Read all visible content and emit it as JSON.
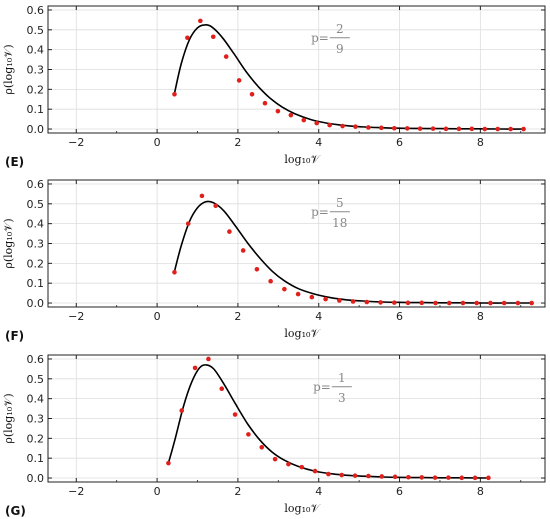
{
  "chart_data": [
    {
      "type": "scatter",
      "panel_label": "(E)",
      "xlabel": "log₁₀𝒱",
      "ylabel": "ρ(log₁₀𝒱)",
      "xlim": [
        -2.7,
        9.6
      ],
      "ylim": [
        -0.02,
        0.62
      ],
      "xticks": [
        -2,
        0,
        2,
        4,
        6,
        8
      ],
      "yticks": [
        0.0,
        0.1,
        0.2,
        0.3,
        0.4,
        0.5,
        0.6
      ],
      "ytick_labels": [
        "0.0",
        "0.1",
        "0.2",
        "0.3",
        "0.4",
        "0.5",
        "0.6"
      ],
      "grid": true,
      "annotation": {
        "prefix": "p=",
        "numerator": "2",
        "denominator": "9"
      },
      "series": [
        {
          "kind": "points",
          "color": "#e0201c",
          "x": [
            0.43,
            0.75,
            1.07,
            1.39,
            1.71,
            2.03,
            2.35,
            2.67,
            2.99,
            3.31,
            3.63,
            3.95,
            4.27,
            4.59,
            4.91,
            5.23,
            5.55,
            5.87,
            6.19,
            6.51,
            6.83,
            7.15,
            7.47,
            7.79,
            8.11,
            8.43,
            8.75,
            9.07
          ],
          "y": [
            0.175,
            0.46,
            0.545,
            0.465,
            0.365,
            0.245,
            0.175,
            0.13,
            0.09,
            0.07,
            0.045,
            0.03,
            0.02,
            0.015,
            0.012,
            0.008,
            0.006,
            0.004,
            0.003,
            0.002,
            0.002,
            0.001,
            0.001,
            0.001,
            0.0,
            0.0,
            0.0,
            0.0
          ]
        },
        {
          "kind": "curve",
          "color": "#000000",
          "x": [
            0.43,
            0.6,
            0.8,
            1.0,
            1.18,
            1.35,
            1.6,
            1.9,
            2.2,
            2.5,
            2.8,
            3.1,
            3.4,
            3.8,
            4.2,
            4.6,
            5.0,
            5.5,
            6.0,
            6.5,
            7.0,
            7.5,
            8.0,
            8.5,
            9.07
          ],
          "y": [
            0.18,
            0.33,
            0.45,
            0.51,
            0.525,
            0.515,
            0.465,
            0.38,
            0.29,
            0.215,
            0.155,
            0.11,
            0.078,
            0.048,
            0.03,
            0.019,
            0.012,
            0.007,
            0.004,
            0.003,
            0.002,
            0.001,
            0.001,
            0.0,
            0.0
          ]
        }
      ]
    },
    {
      "type": "scatter",
      "panel_label": "(F)",
      "xlabel": "log₁₀𝒱",
      "ylabel": "ρ(log₁₀𝒱)",
      "xlim": [
        -2.7,
        9.6
      ],
      "ylim": [
        -0.02,
        0.62
      ],
      "xticks": [
        -2,
        0,
        2,
        4,
        6,
        8
      ],
      "yticks": [
        0.0,
        0.1,
        0.2,
        0.3,
        0.4,
        0.5,
        0.6
      ],
      "ytick_labels": [
        "0.0",
        "0.1",
        "0.2",
        "0.3",
        "0.4",
        "0.5",
        "0.6"
      ],
      "grid": true,
      "annotation": {
        "prefix": "p=",
        "numerator": "5",
        "denominator": "18"
      },
      "series": [
        {
          "kind": "points",
          "color": "#e0201c",
          "x": [
            0.43,
            0.77,
            1.11,
            1.45,
            1.79,
            2.13,
            2.47,
            2.81,
            3.15,
            3.49,
            3.83,
            4.17,
            4.51,
            4.85,
            5.19,
            5.53,
            5.87,
            6.21,
            6.55,
            6.89,
            7.23,
            7.57,
            7.91,
            8.25,
            8.59,
            8.93,
            9.27
          ],
          "y": [
            0.155,
            0.4,
            0.54,
            0.49,
            0.36,
            0.265,
            0.17,
            0.11,
            0.07,
            0.045,
            0.03,
            0.02,
            0.013,
            0.008,
            0.005,
            0.003,
            0.002,
            0.001,
            0.001,
            0.0,
            0.0,
            0.0,
            0.0,
            0.0,
            0.0,
            0.0,
            0.0
          ]
        },
        {
          "kind": "curve",
          "color": "#000000",
          "x": [
            0.43,
            0.6,
            0.8,
            1.0,
            1.2,
            1.4,
            1.65,
            1.95,
            2.25,
            2.55,
            2.85,
            3.15,
            3.5,
            3.9,
            4.3,
            4.7,
            5.1,
            5.6,
            6.1,
            6.6,
            7.1,
            7.6,
            8.1,
            8.6,
            9.27
          ],
          "y": [
            0.16,
            0.29,
            0.41,
            0.48,
            0.51,
            0.505,
            0.465,
            0.385,
            0.3,
            0.225,
            0.16,
            0.112,
            0.072,
            0.045,
            0.027,
            0.016,
            0.01,
            0.005,
            0.003,
            0.002,
            0.001,
            0.001,
            0.0,
            0.0,
            0.0
          ]
        }
      ]
    },
    {
      "type": "scatter",
      "panel_label": "(G)",
      "xlabel": "log₁₀𝒱",
      "ylabel": "ρ(log₁₀𝒱)",
      "xlim": [
        -2.7,
        9.6
      ],
      "ylim": [
        -0.02,
        0.62
      ],
      "xticks": [
        -2,
        0,
        2,
        4,
        6,
        8
      ],
      "yticks": [
        0.0,
        0.1,
        0.2,
        0.3,
        0.4,
        0.5,
        0.6
      ],
      "ytick_labels": [
        "0.0",
        "0.1",
        "0.2",
        "0.3",
        "0.4",
        "0.5",
        "0.6"
      ],
      "grid": true,
      "annotation": {
        "prefix": "p=",
        "numerator": "1",
        "denominator": "3"
      },
      "series": [
        {
          "kind": "points",
          "color": "#e0201c",
          "x": [
            0.28,
            0.61,
            0.94,
            1.27,
            1.6,
            1.93,
            2.26,
            2.59,
            2.92,
            3.25,
            3.58,
            3.91,
            4.24,
            4.57,
            4.9,
            5.23,
            5.56,
            5.89,
            6.22,
            6.55,
            6.88,
            7.21,
            7.54,
            7.87,
            8.2
          ],
          "y": [
            0.075,
            0.34,
            0.555,
            0.6,
            0.45,
            0.32,
            0.22,
            0.155,
            0.095,
            0.07,
            0.055,
            0.035,
            0.02,
            0.015,
            0.012,
            0.01,
            0.008,
            0.006,
            0.004,
            0.003,
            0.002,
            0.002,
            0.001,
            0.001,
            0.001
          ]
        },
        {
          "kind": "curve",
          "color": "#000000",
          "x": [
            0.28,
            0.45,
            0.65,
            0.85,
            1.05,
            1.22,
            1.4,
            1.65,
            1.95,
            2.25,
            2.55,
            2.85,
            3.15,
            3.5,
            3.9,
            4.3,
            4.7,
            5.1,
            5.6,
            6.1,
            6.6,
            7.1,
            7.6,
            8.2
          ],
          "y": [
            0.075,
            0.2,
            0.36,
            0.48,
            0.555,
            0.57,
            0.55,
            0.475,
            0.37,
            0.27,
            0.19,
            0.13,
            0.09,
            0.058,
            0.035,
            0.022,
            0.014,
            0.009,
            0.005,
            0.003,
            0.002,
            0.001,
            0.001,
            0.0
          ]
        }
      ]
    }
  ]
}
